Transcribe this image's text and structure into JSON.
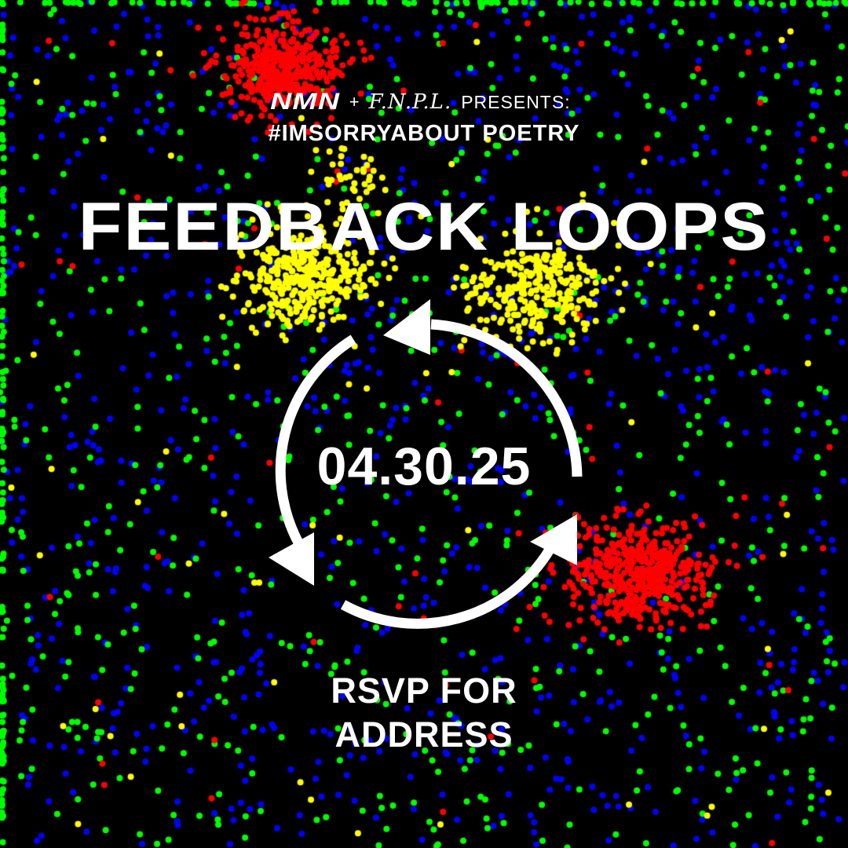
{
  "header": {
    "nmn_logo": "NMN",
    "plus": "+",
    "fnpl_logo": "F.N.P.L.",
    "presents": "PRESENTS:",
    "hashtag": "#IMSORRYABOUT POETRY"
  },
  "event": {
    "title": "FEEDBACK LOOPS",
    "date": "04.30.25",
    "rsvp_line1": "RSVP FOR",
    "rsvp_line2": "ADDRESS"
  },
  "colors": {
    "background": "#000000",
    "text": "#ffffff",
    "dot_red": "#ff0000",
    "dot_yellow": "#ffff00",
    "dot_green": "#00ff00",
    "dot_blue": "#0000ff"
  },
  "icons": [
    "cycle-arrows-icon"
  ]
}
